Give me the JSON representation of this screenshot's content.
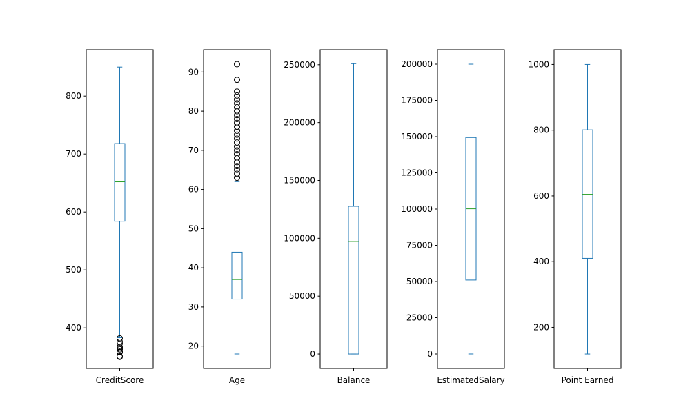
{
  "chart_data": [
    {
      "type": "box",
      "category": "CreditScore",
      "ylim": [
        330,
        880
      ],
      "ticks": [
        400,
        500,
        600,
        700,
        800
      ],
      "whisker_low": 383,
      "q1": 584,
      "median": 652,
      "q3": 718,
      "whisker_high": 850,
      "outliers": [
        350,
        351,
        358,
        359,
        363,
        365,
        367,
        373,
        376,
        382
      ]
    },
    {
      "type": "box",
      "category": "Age",
      "ylim": [
        14.3,
        95.7
      ],
      "ticks": [
        20,
        30,
        40,
        50,
        60,
        70,
        80,
        90
      ],
      "whisker_low": 18,
      "q1": 32,
      "median": 37,
      "q3": 44,
      "whisker_high": 62,
      "outliers": [
        63,
        64,
        65,
        66,
        67,
        68,
        69,
        70,
        71,
        72,
        73,
        74,
        75,
        76,
        77,
        78,
        79,
        80,
        81,
        82,
        83,
        84,
        85,
        88,
        92
      ]
    },
    {
      "type": "box",
      "category": "Balance",
      "ylim": [
        -12500,
        263000
      ],
      "ticks": [
        0,
        50000,
        100000,
        150000,
        200000,
        250000
      ],
      "whisker_low": 0,
      "q1": 0,
      "median": 97199,
      "q3": 127644,
      "whisker_high": 250898,
      "outliers": []
    },
    {
      "type": "box",
      "category": "EstimatedSalary",
      "ylim": [
        -10000,
        210000
      ],
      "ticks": [
        0,
        25000,
        50000,
        75000,
        100000,
        125000,
        150000,
        175000,
        200000
      ],
      "whisker_low": 11.58,
      "q1": 51002,
      "median": 100194,
      "q3": 149388,
      "whisker_high": 199992,
      "outliers": []
    },
    {
      "type": "box",
      "category": "Point Earned",
      "ylim": [
        75,
        1045
      ],
      "ticks": [
        200,
        400,
        600,
        800,
        1000
      ],
      "whisker_low": 119,
      "q1": 410,
      "median": 605,
      "q3": 801,
      "whisker_high": 1000,
      "outliers": []
    }
  ],
  "colors": {
    "box": "#1f77b4",
    "median": "#2ca02c",
    "outlier": "#000000",
    "axes": "#000000"
  }
}
